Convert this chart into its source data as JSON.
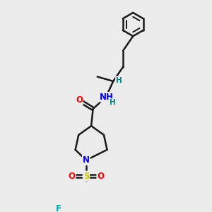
{
  "bg_color": "#ebebeb",
  "bond_color": "#1a1a1a",
  "bond_width": 1.8,
  "atom_colors": {
    "N": "#0000ee",
    "O": "#ff0000",
    "S": "#cccc00",
    "F": "#00aaaa",
    "H": "#008888",
    "C": "#1a1a1a"
  },
  "font_size": 8.5,
  "fig_size": [
    3.0,
    3.0
  ],
  "dpi": 100,
  "xlim": [
    0,
    10
  ],
  "ylim": [
    0,
    10
  ]
}
